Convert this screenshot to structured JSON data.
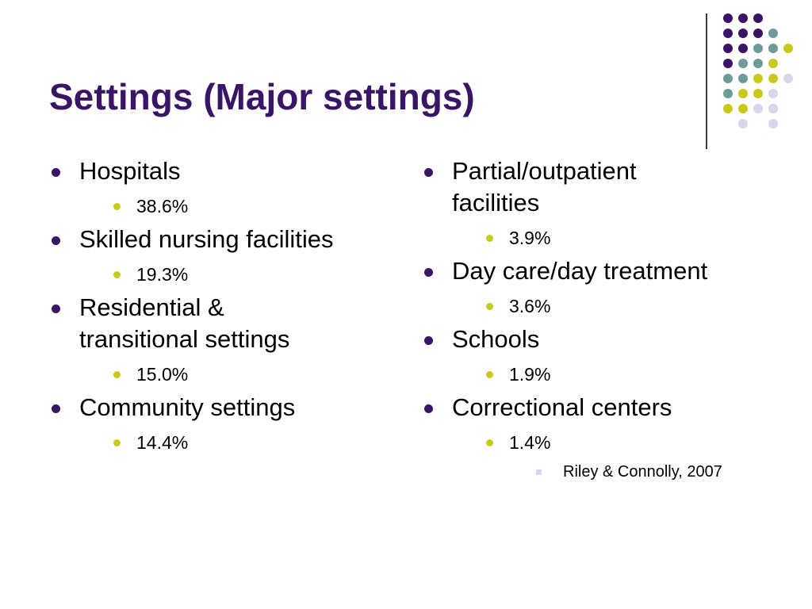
{
  "slide": {
    "title": "Settings (Major settings)",
    "decoration": {
      "colors": {
        "purple": "#3a1466",
        "teal": "#6f9a9a",
        "yellow": "#c9c91a",
        "lavender": "#d6d6ec",
        "title": "#3a1466",
        "divider": "#3b3b3b"
      }
    },
    "left_column": [
      {
        "label": "Hospitals",
        "value": "38.6%"
      },
      {
        "label": "Skilled nursing facilities",
        "value": "19.3%"
      },
      {
        "label": "Residential & transitional settings",
        "value": "15.0%"
      },
      {
        "label": "Community settings",
        "value": "14.4%"
      }
    ],
    "right_column": [
      {
        "label": "Partial/outpatient facilities",
        "value": "3.9%"
      },
      {
        "label": "Day care/day treatment",
        "value": "3.6%"
      },
      {
        "label": "Schools",
        "value": "1.9%"
      },
      {
        "label": "Correctional centers",
        "value": "1.4%"
      }
    ],
    "citation": "Riley & Connolly, 2007"
  }
}
